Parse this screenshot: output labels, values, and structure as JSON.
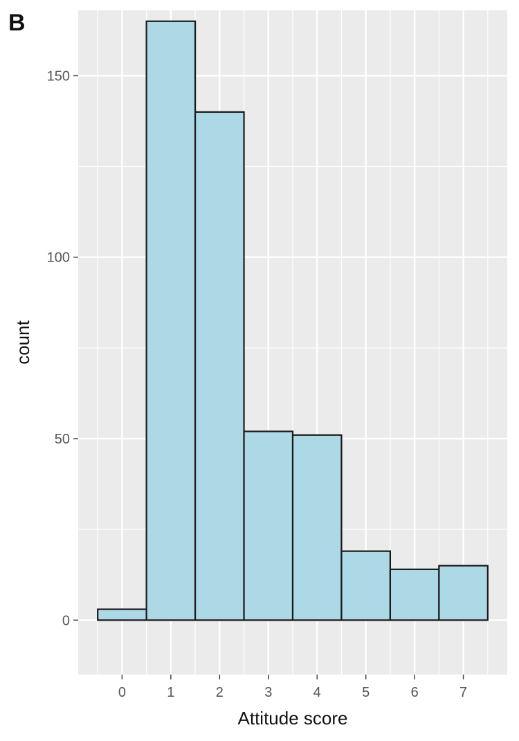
{
  "panel_label": "B",
  "chart_data": {
    "type": "bar",
    "categories": [
      "0",
      "1",
      "2",
      "3",
      "4",
      "5",
      "6",
      "7"
    ],
    "values": [
      3,
      165,
      140,
      52,
      51,
      19,
      14,
      15
    ],
    "xlabel": "Attitude score",
    "ylabel": "count",
    "ylim": [
      -15,
      168
    ],
    "xlim": [
      -0.9,
      7.9
    ],
    "yticks": [
      0,
      50,
      100,
      150
    ],
    "grid": true,
    "bar_fill": "#add8e6",
    "bar_stroke": "#1a1a1a",
    "panel_background": "#ebebeb",
    "grid_color": "#ffffff"
  }
}
